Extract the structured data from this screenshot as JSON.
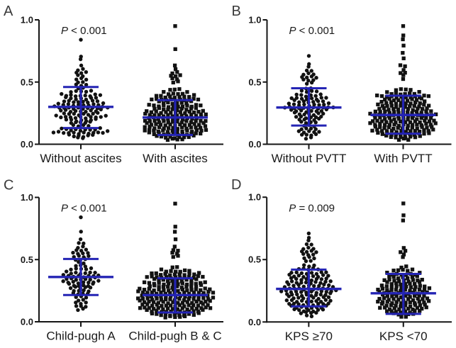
{
  "figure": {
    "background": "#ffffff",
    "panel_letters": [
      "A",
      "B",
      "C",
      "D"
    ]
  },
  "colors": {
    "marker": "#121212",
    "error_bar": "#2424b4",
    "axis": "#151515",
    "panel_label": "#3a3a3a",
    "text": "#1a1a1a"
  },
  "axis": {
    "ylim": [
      0,
      1
    ],
    "grid": false,
    "y_ticks": [
      {
        "value": 0,
        "label": "0.0"
      },
      {
        "value": 0.5,
        "label": "0.5"
      },
      {
        "value": 1,
        "label": "1.0"
      }
    ]
  },
  "chart_data": [
    {
      "panel": "A",
      "type": "scatter",
      "p_label": "P < 0.001",
      "groups": [
        {
          "label": "Without ascites",
          "marker": "circle",
          "mean": 0.3,
          "upper": 0.46,
          "lower": 0.13,
          "rows": [
            [
              0.84,
              1
            ],
            [
              0.71,
              1
            ],
            [
              0.68,
              1
            ],
            [
              0.63,
              1
            ],
            [
              0.6,
              2
            ],
            [
              0.575,
              3
            ],
            [
              0.55,
              2
            ],
            [
              0.525,
              3
            ],
            [
              0.5,
              2
            ],
            [
              0.475,
              3
            ],
            [
              0.45,
              2
            ],
            [
              0.425,
              5
            ],
            [
              0.4,
              9
            ],
            [
              0.375,
              7
            ],
            [
              0.35,
              8
            ],
            [
              0.325,
              10
            ],
            [
              0.3,
              12
            ],
            [
              0.275,
              9
            ],
            [
              0.25,
              8
            ],
            [
              0.225,
              11
            ],
            [
              0.2,
              7
            ],
            [
              0.175,
              5
            ],
            [
              0.15,
              4
            ],
            [
              0.125,
              9
            ],
            [
              0.1,
              12
            ],
            [
              0.075,
              6
            ],
            [
              0.05,
              2
            ]
          ]
        },
        {
          "label": "With ascites",
          "marker": "square",
          "mean": 0.215,
          "upper": 0.355,
          "lower": 0.075,
          "rows": [
            [
              0.95,
              1
            ],
            [
              0.77,
              1
            ],
            [
              0.63,
              1
            ],
            [
              0.6,
              1
            ],
            [
              0.575,
              2
            ],
            [
              0.55,
              3
            ],
            [
              0.525,
              2
            ],
            [
              0.5,
              2
            ],
            [
              0.44,
              3
            ],
            [
              0.415,
              6
            ],
            [
              0.39,
              9
            ],
            [
              0.365,
              11
            ],
            [
              0.34,
              8
            ],
            [
              0.315,
              12
            ],
            [
              0.29,
              10
            ],
            [
              0.265,
              13
            ],
            [
              0.24,
              14
            ],
            [
              0.215,
              12
            ],
            [
              0.19,
              14
            ],
            [
              0.165,
              13
            ],
            [
              0.14,
              14
            ],
            [
              0.115,
              14
            ],
            [
              0.09,
              12
            ],
            [
              0.065,
              9
            ],
            [
              0.04,
              4
            ]
          ]
        }
      ]
    },
    {
      "panel": "B",
      "type": "scatter",
      "p_label": "P < 0.001",
      "groups": [
        {
          "label": "Without PVTT",
          "marker": "circle",
          "mean": 0.295,
          "upper": 0.45,
          "lower": 0.15,
          "rows": [
            [
              0.71,
              1
            ],
            [
              0.65,
              1
            ],
            [
              0.62,
              1
            ],
            [
              0.59,
              2
            ],
            [
              0.565,
              3
            ],
            [
              0.54,
              4
            ],
            [
              0.515,
              3
            ],
            [
              0.49,
              2
            ],
            [
              0.45,
              2
            ],
            [
              0.425,
              4
            ],
            [
              0.4,
              6
            ],
            [
              0.375,
              8
            ],
            [
              0.35,
              7
            ],
            [
              0.325,
              9
            ],
            [
              0.3,
              11
            ],
            [
              0.275,
              8
            ],
            [
              0.25,
              7
            ],
            [
              0.225,
              6
            ],
            [
              0.2,
              5
            ],
            [
              0.175,
              4
            ],
            [
              0.15,
              3
            ],
            [
              0.125,
              4
            ],
            [
              0.1,
              5
            ],
            [
              0.075,
              4
            ],
            [
              0.05,
              2
            ]
          ]
        },
        {
          "label": "With PVTT",
          "marker": "square",
          "mean": 0.235,
          "upper": 0.39,
          "lower": 0.085,
          "rows": [
            [
              0.95,
              1
            ],
            [
              0.88,
              1
            ],
            [
              0.84,
              1
            ],
            [
              0.79,
              1
            ],
            [
              0.74,
              1
            ],
            [
              0.69,
              1
            ],
            [
              0.63,
              2
            ],
            [
              0.6,
              1
            ],
            [
              0.575,
              2
            ],
            [
              0.55,
              1
            ],
            [
              0.525,
              1
            ],
            [
              0.44,
              4
            ],
            [
              0.415,
              8
            ],
            [
              0.39,
              12
            ],
            [
              0.365,
              9
            ],
            [
              0.34,
              10
            ],
            [
              0.315,
              12
            ],
            [
              0.29,
              11
            ],
            [
              0.265,
              13
            ],
            [
              0.24,
              15
            ],
            [
              0.215,
              13
            ],
            [
              0.19,
              14
            ],
            [
              0.165,
              15
            ],
            [
              0.14,
              13
            ],
            [
              0.115,
              14
            ],
            [
              0.09,
              12
            ],
            [
              0.065,
              8
            ],
            [
              0.04,
              3
            ]
          ]
        }
      ]
    },
    {
      "panel": "C",
      "type": "scatter",
      "p_label": "P < 0.001",
      "groups": [
        {
          "label": "Child-pugh A",
          "marker": "circle",
          "mean": 0.36,
          "upper": 0.505,
          "lower": 0.215,
          "rows": [
            [
              0.84,
              1
            ],
            [
              0.73,
              1
            ],
            [
              0.66,
              1
            ],
            [
              0.63,
              2
            ],
            [
              0.6,
              2
            ],
            [
              0.575,
              3
            ],
            [
              0.55,
              4
            ],
            [
              0.525,
              4
            ],
            [
              0.5,
              3
            ],
            [
              0.475,
              2
            ],
            [
              0.45,
              3
            ],
            [
              0.425,
              5
            ],
            [
              0.4,
              7
            ],
            [
              0.375,
              8
            ],
            [
              0.35,
              7
            ],
            [
              0.325,
              8
            ],
            [
              0.3,
              6
            ],
            [
              0.275,
              5
            ],
            [
              0.25,
              4
            ],
            [
              0.225,
              4
            ],
            [
              0.2,
              3
            ],
            [
              0.175,
              2
            ],
            [
              0.15,
              3
            ],
            [
              0.125,
              3
            ],
            [
              0.1,
              2
            ]
          ]
        },
        {
          "label": "Child-pugh B & C",
          "marker": "square",
          "mean": 0.215,
          "upper": 0.35,
          "lower": 0.075,
          "rows": [
            [
              0.95,
              1
            ],
            [
              0.77,
              1
            ],
            [
              0.72,
              1
            ],
            [
              0.66,
              1
            ],
            [
              0.61,
              1
            ],
            [
              0.575,
              2
            ],
            [
              0.55,
              2
            ],
            [
              0.525,
              2
            ],
            [
              0.44,
              2
            ],
            [
              0.415,
              7
            ],
            [
              0.39,
              11
            ],
            [
              0.365,
              13
            ],
            [
              0.34,
              10
            ],
            [
              0.315,
              14
            ],
            [
              0.29,
              12
            ],
            [
              0.265,
              16
            ],
            [
              0.24,
              17
            ],
            [
              0.215,
              15
            ],
            [
              0.19,
              17
            ],
            [
              0.165,
              16
            ],
            [
              0.14,
              15
            ],
            [
              0.115,
              16
            ],
            [
              0.09,
              13
            ],
            [
              0.065,
              11
            ],
            [
              0.04,
              5
            ]
          ]
        }
      ]
    },
    {
      "panel": "D",
      "type": "scatter",
      "p_label": "P = 0.009",
      "groups": [
        {
          "label": "KPS ≥70",
          "marker": "circle",
          "mean": 0.265,
          "upper": 0.42,
          "lower": 0.125,
          "rows": [
            [
              0.71,
              1
            ],
            [
              0.68,
              1
            ],
            [
              0.65,
              1
            ],
            [
              0.62,
              2
            ],
            [
              0.59,
              3
            ],
            [
              0.565,
              4
            ],
            [
              0.54,
              3
            ],
            [
              0.515,
              3
            ],
            [
              0.49,
              2
            ],
            [
              0.45,
              3
            ],
            [
              0.425,
              5
            ],
            [
              0.4,
              8
            ],
            [
              0.375,
              9
            ],
            [
              0.35,
              8
            ],
            [
              0.325,
              10
            ],
            [
              0.3,
              9
            ],
            [
              0.275,
              11
            ],
            [
              0.25,
              12
            ],
            [
              0.225,
              10
            ],
            [
              0.2,
              9
            ],
            [
              0.175,
              10
            ],
            [
              0.15,
              9
            ],
            [
              0.125,
              8
            ],
            [
              0.1,
              7
            ],
            [
              0.075,
              4
            ],
            [
              0.05,
              2
            ]
          ]
        },
        {
          "label": "KPS <70",
          "marker": "square",
          "mean": 0.23,
          "upper": 0.385,
          "lower": 0.065,
          "rows": [
            [
              0.95,
              1
            ],
            [
              0.86,
              1
            ],
            [
              0.81,
              1
            ],
            [
              0.59,
              1
            ],
            [
              0.565,
              2
            ],
            [
              0.54,
              1
            ],
            [
              0.515,
              1
            ],
            [
              0.44,
              2
            ],
            [
              0.415,
              5
            ],
            [
              0.39,
              8
            ],
            [
              0.365,
              7
            ],
            [
              0.34,
              9
            ],
            [
              0.315,
              8
            ],
            [
              0.29,
              10
            ],
            [
              0.265,
              12
            ],
            [
              0.24,
              11
            ],
            [
              0.215,
              10
            ],
            [
              0.19,
              11
            ],
            [
              0.165,
              12
            ],
            [
              0.14,
              10
            ],
            [
              0.115,
              11
            ],
            [
              0.09,
              8
            ],
            [
              0.065,
              5
            ],
            [
              0.04,
              2
            ]
          ]
        }
      ]
    }
  ]
}
